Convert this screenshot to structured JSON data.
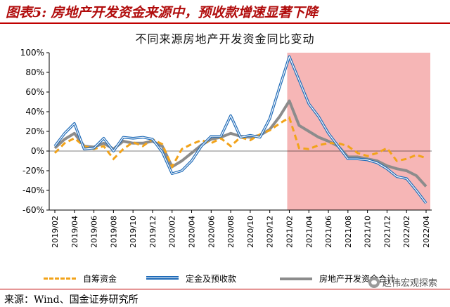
{
  "figure": {
    "label": "图表5:",
    "title": "房地产开发资金来源中，预收款增速显著下降"
  },
  "source_label": "来源：Wind、国金证券研究所",
  "watermark": "赵伟宏观探索",
  "colors": {
    "header_accent": "#c00000",
    "shade": "#f6b6b6",
    "self_raised": "#f2a31a",
    "deposits": "#1f6bb8",
    "total": "#8c8c8c"
  },
  "chart_data": {
    "type": "line",
    "title": "不同来源房地产开发资金同比变动",
    "ylim": [
      -60,
      100
    ],
    "y_ticks": [
      -60,
      -40,
      -20,
      0,
      20,
      40,
      60,
      80,
      100
    ],
    "y_tick_format": "percent",
    "x_tick_labels": [
      "2019/02",
      "2019/04",
      "2019/06",
      "2019/08",
      "2019/10",
      "2019/12",
      "2020/02",
      "2020/04",
      "2020/06",
      "2020/08",
      "2020/10",
      "2020/12",
      "2021/02",
      "2021/04",
      "2021/06",
      "2021/08",
      "2021/10",
      "2021/12",
      "2022/02",
      "2022/04"
    ],
    "x": [
      "2019/02",
      "2019/03",
      "2019/04",
      "2019/05",
      "2019/06",
      "2019/07",
      "2019/08",
      "2019/09",
      "2019/10",
      "2019/11",
      "2019/12",
      "2020/01",
      "2020/02",
      "2020/03",
      "2020/04",
      "2020/05",
      "2020/06",
      "2020/07",
      "2020/08",
      "2020/09",
      "2020/10",
      "2020/11",
      "2020/12",
      "2021/01",
      "2021/02",
      "2021/03",
      "2021/04",
      "2021/05",
      "2021/06",
      "2021/07",
      "2021/08",
      "2021/09",
      "2021/10",
      "2021/11",
      "2021/12",
      "2022/01",
      "2022/02",
      "2022/03",
      "2022/04"
    ],
    "shaded_region": {
      "from": "2021/02",
      "to": "2022/04"
    },
    "series": [
      {
        "name": "自筹资金",
        "style": "dashed",
        "values": [
          -2,
          8,
          13,
          5,
          2,
          5,
          -8,
          2,
          9,
          5,
          12,
          7,
          -16,
          2,
          7,
          11,
          8,
          13,
          5,
          14,
          11,
          17,
          21,
          28,
          34,
          3,
          2,
          6,
          8,
          8,
          5,
          -2,
          -5,
          -2,
          3,
          -10,
          -8,
          -4,
          -7
        ]
      },
      {
        "name": "定金及预收款",
        "style": "solid-double",
        "values": [
          5,
          18,
          28,
          2,
          3,
          13,
          0,
          14,
          13,
          14,
          12,
          -1,
          -23,
          -20,
          -10,
          5,
          15,
          15,
          36,
          14,
          16,
          14,
          33,
          65,
          96,
          72,
          48,
          35,
          18,
          5,
          -8,
          -8,
          -9,
          -12,
          -18,
          -26,
          -28,
          -40,
          -53
        ]
      },
      {
        "name": "房地产开发资金合计",
        "style": "thick-gray",
        "values": [
          3,
          12,
          18,
          5,
          4,
          8,
          2,
          10,
          8,
          8,
          10,
          5,
          -16,
          -10,
          -2,
          6,
          12,
          14,
          18,
          15,
          14,
          16,
          22,
          35,
          51,
          26,
          20,
          14,
          10,
          5,
          -6,
          -6,
          -8,
          -10,
          -15,
          -18,
          -20,
          -25,
          -36
        ]
      }
    ]
  }
}
